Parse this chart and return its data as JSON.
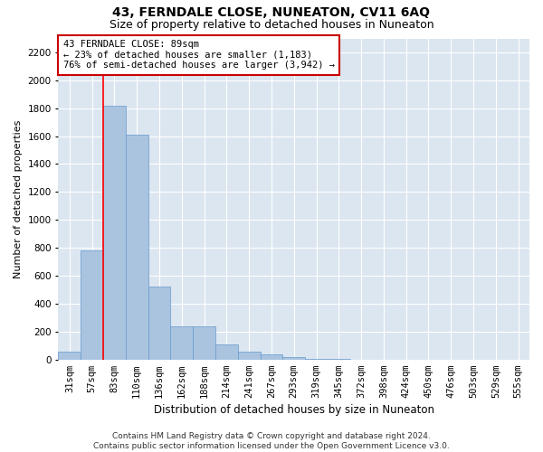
{
  "title": "43, FERNDALE CLOSE, NUNEATON, CV11 6AQ",
  "subtitle": "Size of property relative to detached houses in Nuneaton",
  "xlabel": "Distribution of detached houses by size in Nuneaton",
  "ylabel": "Number of detached properties",
  "bar_labels": [
    "31sqm",
    "57sqm",
    "83sqm",
    "110sqm",
    "136sqm",
    "162sqm",
    "188sqm",
    "214sqm",
    "241sqm",
    "267sqm",
    "293sqm",
    "319sqm",
    "345sqm",
    "372sqm",
    "398sqm",
    "424sqm",
    "450sqm",
    "476sqm",
    "503sqm",
    "529sqm",
    "555sqm"
  ],
  "bar_values": [
    55,
    780,
    1820,
    1610,
    520,
    240,
    240,
    105,
    55,
    40,
    20,
    5,
    2,
    1,
    1,
    0,
    0,
    0,
    0,
    0,
    0
  ],
  "bar_color": "#aac4e0",
  "bar_edge_color": "#6699cc",
  "red_line_index": 2,
  "annotation_text": "43 FERNDALE CLOSE: 89sqm\n← 23% of detached houses are smaller (1,183)\n76% of semi-detached houses are larger (3,942) →",
  "annotation_box_color": "#ffffff",
  "annotation_box_edge_color": "#cc0000",
  "ylim": [
    0,
    2300
  ],
  "yticks": [
    0,
    200,
    400,
    600,
    800,
    1000,
    1200,
    1400,
    1600,
    1800,
    2000,
    2200
  ],
  "background_color": "#dce6f0",
  "footer_text": "Contains HM Land Registry data © Crown copyright and database right 2024.\nContains public sector information licensed under the Open Government Licence v3.0.",
  "title_fontsize": 10,
  "subtitle_fontsize": 9,
  "xlabel_fontsize": 8.5,
  "ylabel_fontsize": 8,
  "tick_fontsize": 7.5,
  "annotation_fontsize": 7.5,
  "footer_fontsize": 6.5
}
